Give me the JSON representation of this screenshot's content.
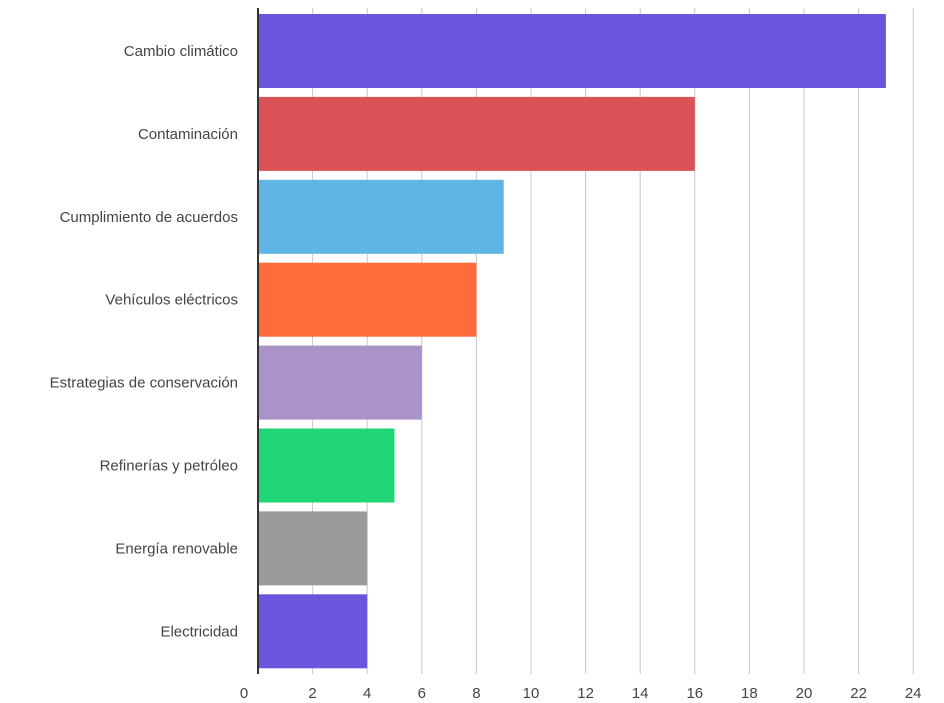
{
  "chart_data": {
    "type": "bar",
    "orientation": "horizontal",
    "title": "",
    "xlabel": "",
    "ylabel": "",
    "categories": [
      "Cambio climático",
      "Contaminación",
      "Cumplimiento de acuerdos",
      "Vehículos eléctricos",
      "Estrategias de conservación",
      "Refinerías y petróleo",
      "Energía renovable",
      "Electricidad"
    ],
    "values": [
      23,
      16,
      9,
      8,
      6,
      5,
      4,
      4
    ],
    "colors": [
      "#6b55dd",
      "#db5356",
      "#5fb6e5",
      "#ff6b3b",
      "#ab92c8",
      "#20d677",
      "#9b9b9b",
      "#6b55dd"
    ],
    "xlim": [
      0,
      24
    ],
    "xticks": [
      0,
      2,
      4,
      6,
      8,
      10,
      12,
      14,
      16,
      18,
      20,
      22,
      24
    ],
    "grid": "vertical",
    "legend": "none"
  }
}
